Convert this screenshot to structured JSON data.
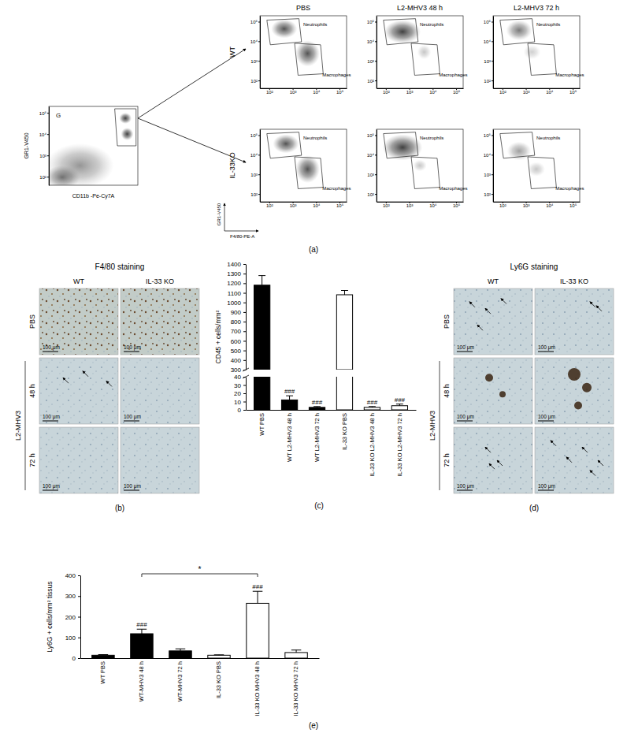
{
  "flow": {
    "panel_label": "(a)",
    "gate_plot": {
      "label": "G",
      "x_label": "CD11b -Pe-Cy7A",
      "y_label": "GR1-V450"
    },
    "columns": [
      "PBS",
      "L2-MHV3 48 h",
      "L2-MHV3 72 h"
    ],
    "rows": [
      "WT",
      "IL-33KO"
    ],
    "gates": [
      "Neutrophils",
      "Macrophages"
    ],
    "x_label": "F4/80-PE-A",
    "y_label": "GR1-V450",
    "log": true,
    "lim": [
      40,
      200000
    ],
    "ticks": [
      {
        "value": 100,
        "label": "10²"
      },
      {
        "value": 1000,
        "label": "10³"
      },
      {
        "value": 10000,
        "label": "10⁴"
      },
      {
        "value": 100000,
        "label": "10⁵"
      }
    ]
  },
  "histology": [
    {
      "panel_label": "(b)",
      "title": "F4/80 staining",
      "columns": [
        "WT",
        "IL-33 KO"
      ],
      "rows": [
        "PBS",
        "48 h",
        "72 h"
      ],
      "group_label": "L2-MHV3",
      "scale_label": "100 μm"
    },
    {
      "panel_label": "(d)",
      "title": "Ly6G staining",
      "columns": [
        "WT",
        "IL-33 KO"
      ],
      "rows": [
        "PBS",
        "48 h",
        "72 h"
      ],
      "group_label": "L2-MHV3",
      "scale_label": "100 μm"
    }
  ],
  "chart_data": [
    {
      "type": "bar",
      "panel_label": "(c)",
      "y_label": "CD45 + cells/mm²",
      "categories": [
        "WT PBS",
        "WT L2-MHV3 48 h",
        "WT L2-MHV3 72 h",
        "IL-33 KO PBS",
        "IL-33 KO L2-MHV3 48 h",
        "IL-33 KO L2-MHV3 72 h"
      ],
      "values": [
        1180,
        12,
        3,
        1080,
        3,
        5
      ],
      "errors": [
        100,
        5,
        1,
        45,
        1,
        2
      ],
      "colors": [
        "#000000",
        "#000000",
        "#000000",
        "#ffffff",
        "#ffffff",
        "#ffffff"
      ],
      "significance": [
        null,
        "###",
        "###",
        null,
        "###",
        "###"
      ],
      "ylim": [
        0,
        1400
      ],
      "y_break": [
        40,
        300
      ],
      "yticks": [
        0,
        10,
        20,
        30,
        40,
        300,
        400,
        500,
        600,
        700,
        800,
        900,
        1000,
        1100,
        1200,
        1300,
        1400
      ]
    },
    {
      "type": "bar",
      "panel_label": "(e)",
      "y_label": "Ly6G + cells/mm² tissus",
      "categories": [
        "WT PBS",
        "WT-MHV3 48 h",
        "WT-MHV3 72 h",
        "IL-33 KO PBS",
        "IL-33 KO MHV3 48 h",
        "IL-33 KO MHV3 72 h"
      ],
      "values": [
        14,
        118,
        35,
        14,
        265,
        27
      ],
      "errors": [
        3,
        22,
        10,
        2,
        58,
        12
      ],
      "colors": [
        "#000000",
        "#000000",
        "#000000",
        "#ffffff",
        "#ffffff",
        "#ffffff"
      ],
      "significance": [
        null,
        "###",
        null,
        null,
        "###",
        null
      ],
      "comparisons": [
        {
          "from": 1,
          "to": 4,
          "text": "*"
        }
      ],
      "ylim": [
        0,
        400
      ],
      "yticks": [
        0,
        100,
        200,
        300,
        400
      ]
    }
  ]
}
